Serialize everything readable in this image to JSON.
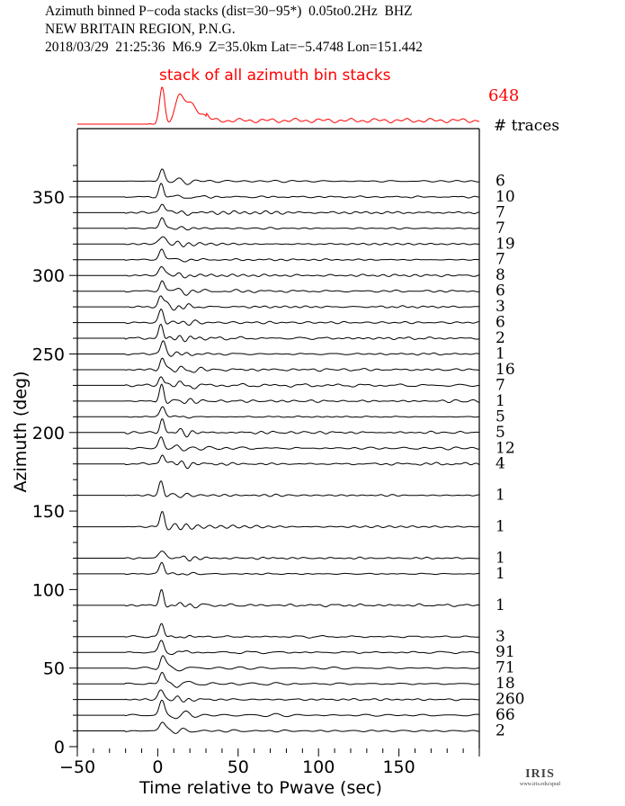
{
  "header": {
    "line1": "Azimuth binned P−coda stacks (dist=30−95*)  0.05to0.2Hz  BHZ",
    "line2": "NEW BRITAIN REGION, P.N.G.",
    "line3": "2018/03/29  21:25:36  M6.9  Z=35.0km Lat=−5.4748 Lon=151.442"
  },
  "logo": {
    "text": "IRIS",
    "sub": "www.iris.edu/spud"
  },
  "chart_data": {
    "type": "line",
    "title": "Azimuth binned P−coda stacks (dist=30−95*)  0.05to0.2Hz  BHZ",
    "xlabel": "Time relative to Pwave (sec)",
    "ylabel": "Azimuth (deg)",
    "xlim": [
      -50,
      200
    ],
    "ylim": [
      0,
      380
    ],
    "xticks": [
      -50,
      0,
      50,
      100,
      150
    ],
    "yticks": [
      0,
      50,
      100,
      150,
      200,
      250,
      300,
      350
    ],
    "grid": false,
    "stack": {
      "label": "stack of all azimuth bin stacks",
      "count": "648",
      "count_label": "# traces",
      "color": "#ff0000"
    },
    "trace_color": "#000000",
    "traces": [
      {
        "azimuth": 360,
        "count": "6"
      },
      {
        "azimuth": 350,
        "count": "10"
      },
      {
        "azimuth": 340,
        "count": "7"
      },
      {
        "azimuth": 330,
        "count": "7"
      },
      {
        "azimuth": 320,
        "count": "19"
      },
      {
        "azimuth": 310,
        "count": "7"
      },
      {
        "azimuth": 300,
        "count": "8"
      },
      {
        "azimuth": 290,
        "count": "6"
      },
      {
        "azimuth": 280,
        "count": "3"
      },
      {
        "azimuth": 270,
        "count": "6"
      },
      {
        "azimuth": 260,
        "count": "2"
      },
      {
        "azimuth": 250,
        "count": "1"
      },
      {
        "azimuth": 240,
        "count": "16"
      },
      {
        "azimuth": 230,
        "count": "7"
      },
      {
        "azimuth": 220,
        "count": "1"
      },
      {
        "azimuth": 210,
        "count": "5"
      },
      {
        "azimuth": 200,
        "count": "5"
      },
      {
        "azimuth": 190,
        "count": "12"
      },
      {
        "azimuth": 180,
        "count": "4"
      },
      {
        "azimuth": 160,
        "count": "1"
      },
      {
        "azimuth": 140,
        "count": "1"
      },
      {
        "azimuth": 120,
        "count": "1"
      },
      {
        "azimuth": 110,
        "count": "1"
      },
      {
        "azimuth": 90,
        "count": "1"
      },
      {
        "azimuth": 70,
        "count": "3"
      },
      {
        "azimuth": 60,
        "count": "91"
      },
      {
        "azimuth": 50,
        "count": "71"
      },
      {
        "azimuth": 40,
        "count": "18"
      },
      {
        "azimuth": 30,
        "count": "260"
      },
      {
        "azimuth": 20,
        "count": "66"
      },
      {
        "azimuth": 10,
        "count": "2"
      }
    ]
  }
}
